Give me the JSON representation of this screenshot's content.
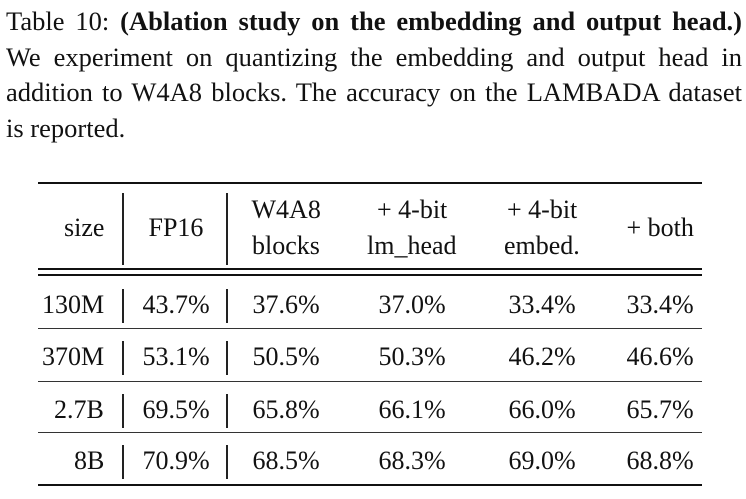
{
  "caption": {
    "label": "Table 10:",
    "bold": "(Ablation study on the embedding and output head.)",
    "text": "We experiment on quantizing the embedding and output head in addition to W4A8 blocks. The accuracy on the LAMBADA dataset is reported."
  },
  "table": {
    "headers": [
      [
        "size"
      ],
      [
        "FP16"
      ],
      [
        "W4A8",
        "blocks"
      ],
      [
        "+ 4-bit",
        "lm_head"
      ],
      [
        "+ 4-bit",
        "embed."
      ],
      [
        "+ both"
      ]
    ],
    "rows": [
      [
        "130M",
        "43.7%",
        "37.6%",
        "37.0%",
        "33.4%",
        "33.4%"
      ],
      [
        "370M",
        "53.1%",
        "50.5%",
        "50.3%",
        "46.2%",
        "46.6%"
      ],
      [
        "2.7B",
        "69.5%",
        "65.8%",
        "66.1%",
        "66.0%",
        "65.7%"
      ],
      [
        "8B",
        "70.9%",
        "68.5%",
        "68.3%",
        "69.0%",
        "68.8%"
      ]
    ]
  }
}
